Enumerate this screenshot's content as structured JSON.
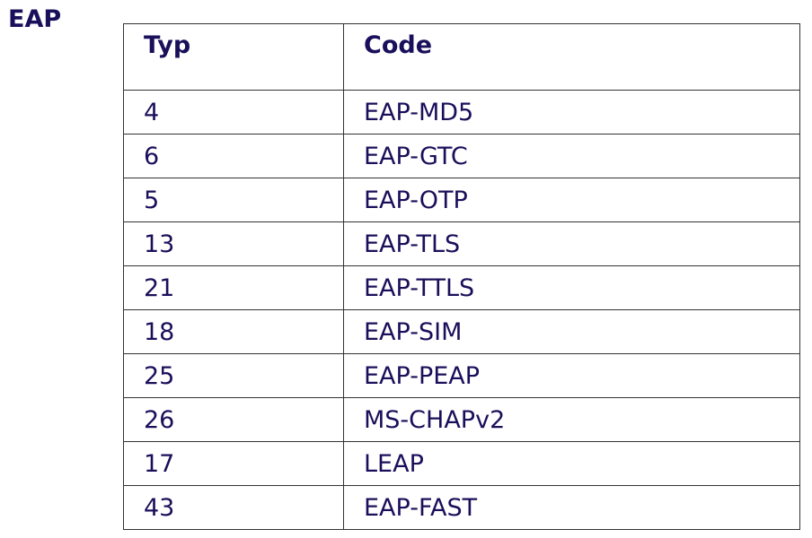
{
  "title": "EAP",
  "table": {
    "headers": [
      "Typ",
      "Code"
    ],
    "rows": [
      [
        "4",
        "EAP-MD5"
      ],
      [
        "6",
        "EAP-GTC"
      ],
      [
        "5",
        "EAP-OTP"
      ],
      [
        "13",
        "EAP-TLS"
      ],
      [
        "21",
        "EAP-TTLS"
      ],
      [
        "18",
        "EAP-SIM"
      ],
      [
        "25",
        "EAP-PEAP"
      ],
      [
        "26",
        "MS-CHAPv2"
      ],
      [
        "17",
        "LEAP"
      ],
      [
        "43",
        "EAP-FAST"
      ]
    ]
  },
  "colors": {
    "text": "#1a0f5a",
    "border": "#333333"
  }
}
